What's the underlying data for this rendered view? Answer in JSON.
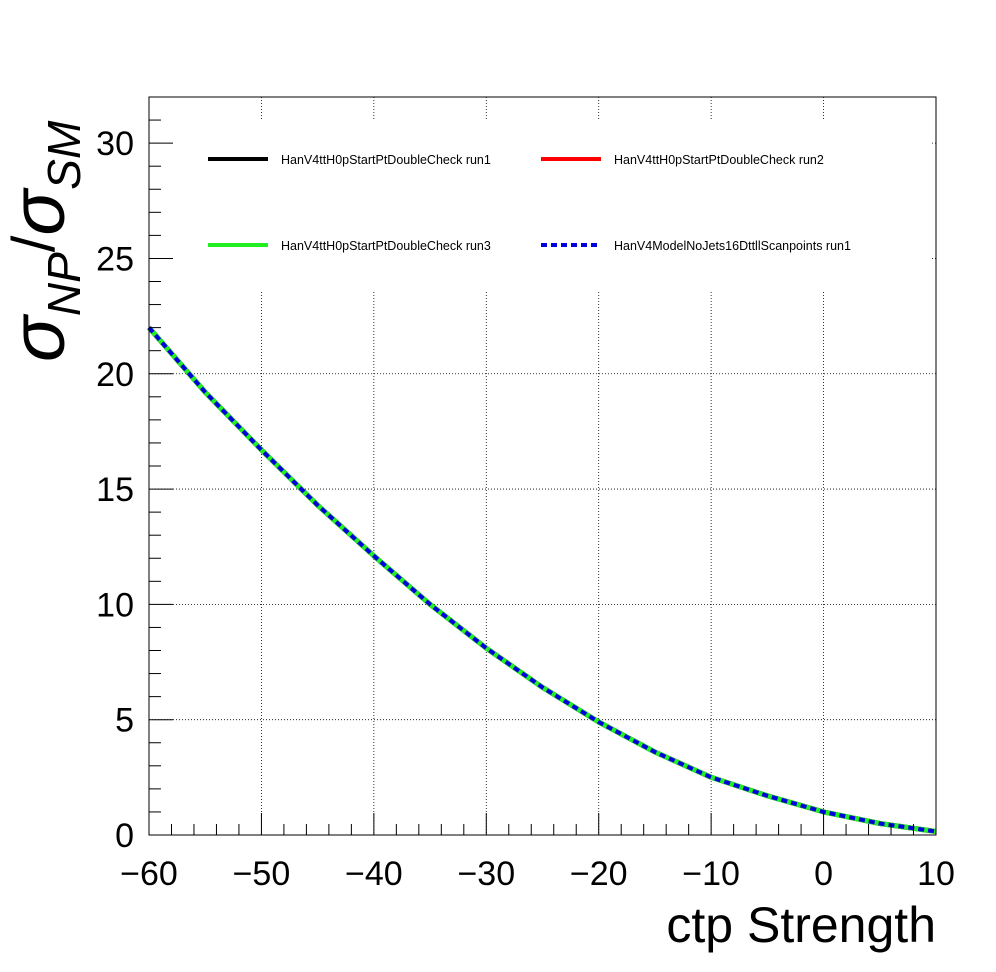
{
  "chart_data": {
    "type": "line",
    "xlabel": "ctp Strength",
    "ylabel": {
      "symbol": "σ",
      "sub_num": "NP",
      "slash": "/",
      "sub_den": "SM"
    },
    "xlim": [
      -60,
      10
    ],
    "ylim": [
      0,
      32
    ],
    "x_ticks": [
      -60,
      -50,
      -40,
      -30,
      -20,
      -10,
      0,
      10
    ],
    "x_tick_labels": [
      "−60",
      "−50",
      "−40",
      "−30",
      "−20",
      "−10",
      "0",
      "10"
    ],
    "y_ticks": [
      0,
      5,
      10,
      15,
      20,
      25,
      30
    ],
    "y_tick_labels": [
      "0",
      "5",
      "10",
      "15",
      "20",
      "25",
      "30"
    ],
    "grid": true,
    "legend_position": "top",
    "x": [
      -60,
      -55,
      -50,
      -45,
      -40,
      -35,
      -30,
      -25,
      -20,
      -15,
      -10,
      -5,
      0,
      5,
      10
    ],
    "series": [
      {
        "name": "HanV4ttH0pStartPtDoubleCheck run1",
        "color": "#000000",
        "style": "solid",
        "values": [
          22.0,
          19.2,
          16.7,
          14.3,
          12.1,
          10.0,
          8.1,
          6.4,
          4.9,
          3.6,
          2.5,
          1.7,
          1.0,
          0.5,
          0.15
        ]
      },
      {
        "name": "HanV4ttH0pStartPtDoubleCheck run2",
        "color": "#ff0000",
        "style": "solid",
        "values": [
          22.0,
          19.2,
          16.7,
          14.3,
          12.1,
          10.0,
          8.1,
          6.4,
          4.9,
          3.6,
          2.5,
          1.7,
          1.0,
          0.5,
          0.15
        ]
      },
      {
        "name": "HanV4ttH0pStartPtDoubleCheck run3",
        "color": "#22ee22",
        "style": "solid",
        "values": [
          22.0,
          19.2,
          16.7,
          14.3,
          12.1,
          10.0,
          8.1,
          6.4,
          4.9,
          3.6,
          2.5,
          1.7,
          1.0,
          0.5,
          0.15
        ]
      },
      {
        "name": "HanV4ModelNoJets16DttllScanpoints run1",
        "color": "#0000dd",
        "style": "dashed",
        "values": [
          22.0,
          19.2,
          16.7,
          14.3,
          12.1,
          10.0,
          8.1,
          6.4,
          4.9,
          3.6,
          2.5,
          1.7,
          1.0,
          0.5,
          0.15
        ]
      }
    ]
  }
}
